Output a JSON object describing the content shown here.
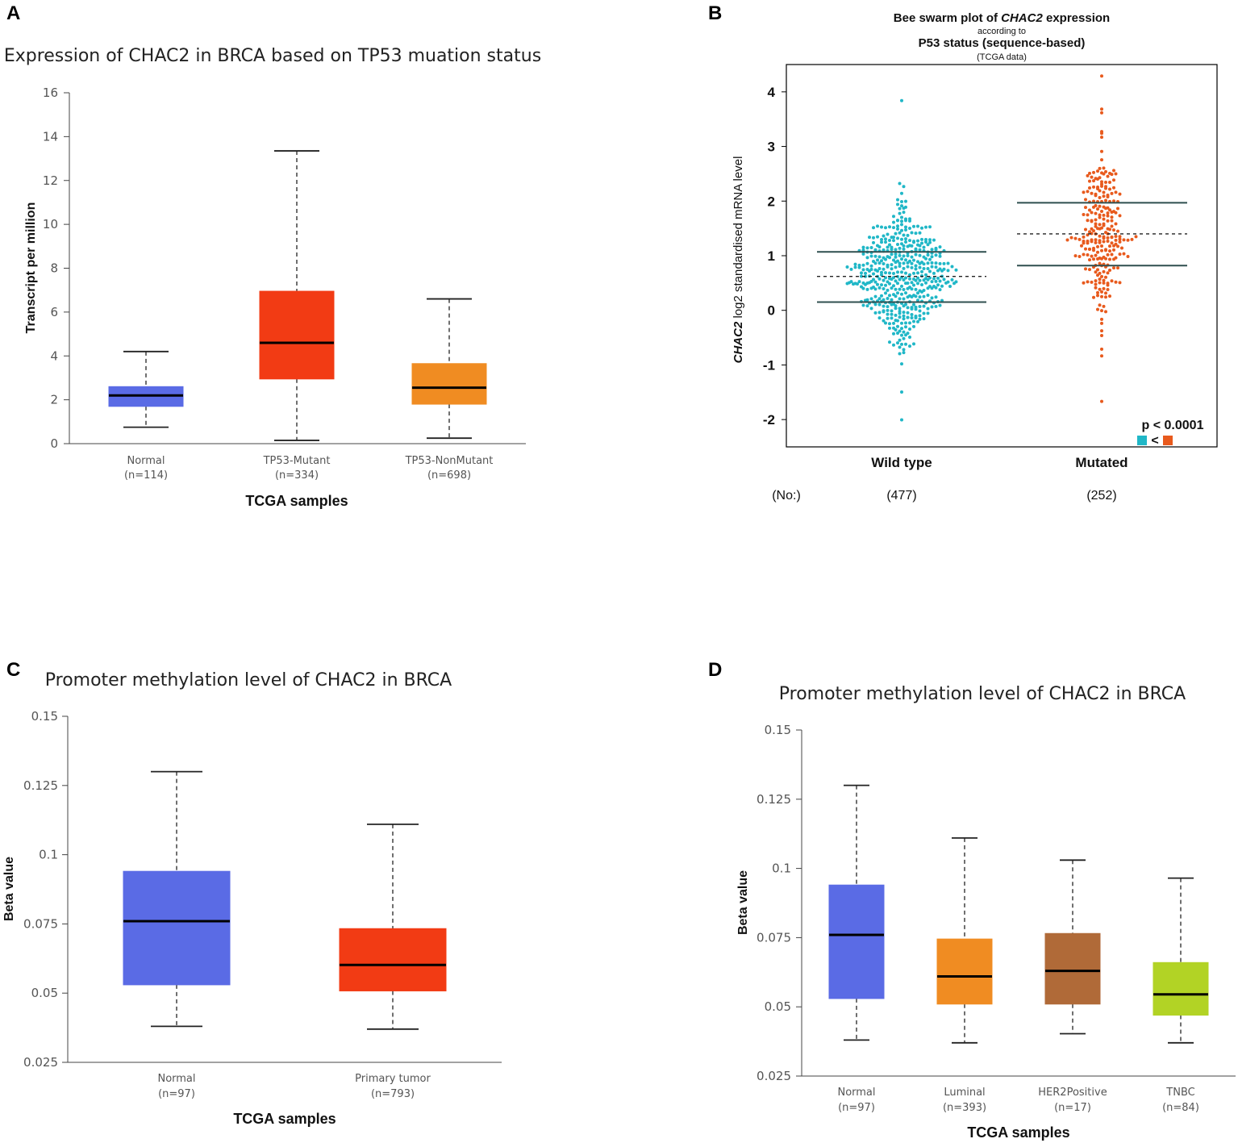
{
  "panels": {
    "A": {
      "label": "A"
    },
    "B": {
      "label": "B",
      "title_pre": "Bee swarm plot of ",
      "title_gene": "CHAC2",
      "title_post": " expression",
      "title_line2": "according to",
      "title_line3": "P53 status (sequence-based)",
      "title_line4": "(TCGA data)",
      "ylabel_gene": "CHAC2",
      "ylabel_rest": " log2 standardised mRNA level",
      "n_prefix": "(No:)",
      "pvalue": "p < 0.0001",
      "compare_symbol": "<"
    },
    "C": {
      "label": "C"
    },
    "D": {
      "label": "D"
    }
  },
  "colors": {
    "normal": "#5a6be5",
    "mutant": "#f23b14",
    "nonmutant": "#f08c22",
    "luminal": "#f08c22",
    "her2": "#b06a38",
    "tnbc": "#b2d325",
    "wild": "#20b7c7",
    "mutated": "#e85a1d",
    "swarm_line": "#2f4f4f"
  },
  "chart_data": [
    {
      "panel": "A",
      "type": "box",
      "title": "Expression of CHAC2 in BRCA based on TP53 muation status",
      "ylabel": "Transcript per million",
      "xlabel": "TCGA samples",
      "ylim": [
        0,
        16
      ],
      "yticks": [
        "0",
        "2",
        "4",
        "6",
        "8",
        "10",
        "12",
        "14",
        "16"
      ],
      "categories": [
        {
          "name": "Normal",
          "n": "(n=114)",
          "min": 0.75,
          "q1": 1.7,
          "median": 2.2,
          "q3": 2.6,
          "max": 4.2,
          "color": "#5a6be5"
        },
        {
          "name": "TP53-Mutant",
          "n": "(n=334)",
          "min": 0.15,
          "q1": 2.95,
          "median": 4.6,
          "q3": 6.95,
          "max": 13.35,
          "color": "#f23b14"
        },
        {
          "name": "TP53-NonMutant",
          "n": "(n=698)",
          "min": 0.25,
          "q1": 1.8,
          "median": 2.55,
          "q3": 3.65,
          "max": 6.6,
          "color": "#f08c22"
        }
      ]
    },
    {
      "panel": "B",
      "type": "scatter",
      "ylim": [
        -2.5,
        4.5
      ],
      "yticks": [
        "-2",
        "-1",
        "0",
        "1",
        "2",
        "3",
        "4"
      ],
      "series": [
        {
          "name": "Wild type",
          "n": "(477)",
          "count": 477,
          "mean": 0.62,
          "sd": 0.61,
          "min": -2.02,
          "max": 3.83,
          "line_low": 0.15,
          "line_mid": 0.62,
          "line_high": 1.07,
          "color": "#20b7c7"
        },
        {
          "name": "Mutated",
          "n": "(252)",
          "count": 252,
          "mean": 1.4,
          "sd": 0.74,
          "min": -1.68,
          "max": 4.28,
          "line_low": 0.82,
          "line_mid": 1.4,
          "line_high": 1.97,
          "color": "#e85a1d"
        }
      ]
    },
    {
      "panel": "C",
      "type": "box",
      "title": "Promoter methylation level of CHAC2 in BRCA",
      "ylabel": "Beta value",
      "xlabel": "TCGA samples",
      "ylim": [
        0.025,
        0.15
      ],
      "yticks": [
        "0.025",
        "0.05",
        "0.075",
        "0.1",
        "0.125",
        "0.15"
      ],
      "categories": [
        {
          "name": "Normal",
          "n": "(n=97)",
          "min": 0.038,
          "q1": 0.053,
          "median": 0.076,
          "q3": 0.094,
          "max": 0.13,
          "color": "#5a6be5"
        },
        {
          "name": "Primary tumor",
          "n": "(n=793)",
          "min": 0.037,
          "q1": 0.0508,
          "median": 0.0602,
          "q3": 0.0733,
          "max": 0.111,
          "color": "#f23b14"
        }
      ]
    },
    {
      "panel": "D",
      "type": "box",
      "title": "Promoter methylation level of CHAC2 in BRCA",
      "ylabel": "Beta value",
      "xlabel": "TCGA samples",
      "ylim": [
        0.025,
        0.15
      ],
      "yticks": [
        "0.025",
        "0.05",
        "0.075",
        "0.1",
        "0.125",
        "0.15"
      ],
      "categories": [
        {
          "name": "Normal",
          "n": "(n=97)",
          "min": 0.038,
          "q1": 0.053,
          "median": 0.076,
          "q3": 0.094,
          "max": 0.13,
          "color": "#5a6be5"
        },
        {
          "name": "Luminal",
          "n": "(n=393)",
          "min": 0.037,
          "q1": 0.051,
          "median": 0.061,
          "q3": 0.0745,
          "max": 0.111,
          "color": "#f08c22"
        },
        {
          "name": "HER2Positive",
          "n": "(n=17)",
          "min": 0.0403,
          "q1": 0.051,
          "median": 0.063,
          "q3": 0.0765,
          "max": 0.103,
          "color": "#b06a38"
        },
        {
          "name": "TNBC",
          "n": "(n=84)",
          "min": 0.037,
          "q1": 0.047,
          "median": 0.0545,
          "q3": 0.066,
          "max": 0.0965,
          "color": "#b2d325"
        }
      ]
    }
  ]
}
